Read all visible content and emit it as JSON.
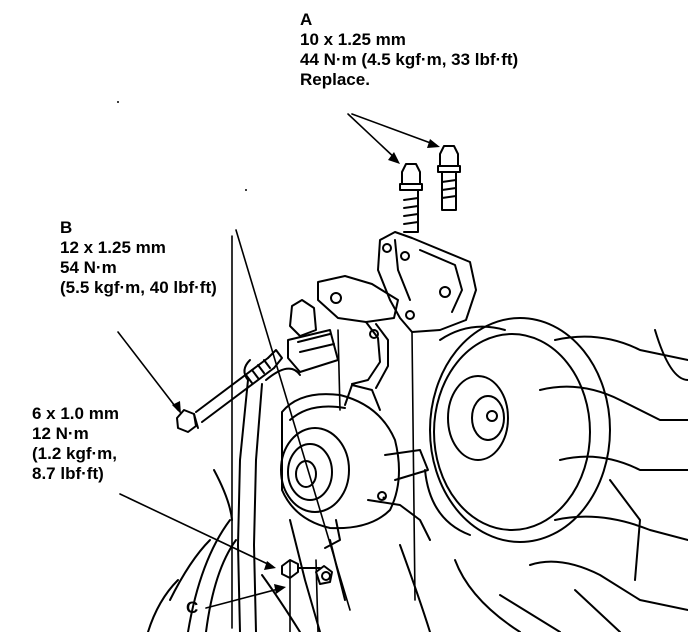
{
  "callouts": {
    "a": {
      "letter": "A",
      "lines": [
        "10 x 1.25 mm",
        "44 N·m (4.5 kgf·m, 33 lbf·ft)",
        "Replace."
      ]
    },
    "b": {
      "letter": "B",
      "lines": [
        "12 x 1.25 mm",
        "54 N·m",
        "(5.5 kgf·m, 40 lbf·ft)"
      ]
    },
    "c": {
      "letter": "C",
      "lines": [
        "6 x 1.0 mm",
        "12 N·m",
        "(1.2 kgf·m,",
        "8.7 lbf·ft)"
      ]
    }
  },
  "colors": {
    "ink": "#000000",
    "paper": "#ffffff"
  }
}
